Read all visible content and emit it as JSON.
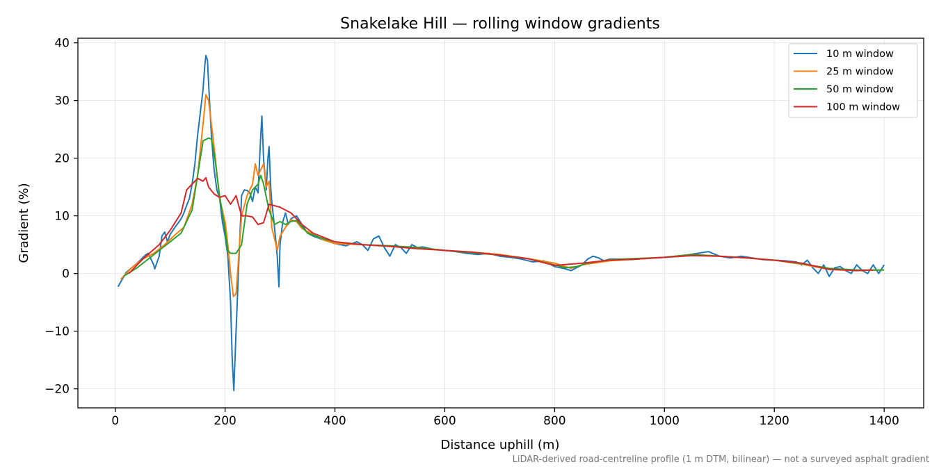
{
  "chart_data": {
    "type": "line",
    "title": "Snakelake Hill — rolling window gradients",
    "xlabel": "Distance uphill (m)",
    "ylabel": "Gradient (%)",
    "xlim": [
      -68,
      1472
    ],
    "ylim": [
      -23.3,
      40.8
    ],
    "xticks": [
      0,
      200,
      400,
      600,
      800,
      1000,
      1200,
      1400
    ],
    "xtick_labels": [
      "0",
      "200",
      "400",
      "600",
      "800",
      "1000",
      "1200",
      "1400"
    ],
    "yticks": [
      -20,
      -10,
      0,
      10,
      20,
      30,
      40
    ],
    "ytick_labels": [
      "−20",
      "−10",
      "0",
      "10",
      "20",
      "30",
      "40"
    ],
    "grid": true,
    "legend_position": "top-right",
    "footnote": "LiDAR-derived road-centreline profile (1 m DTM, bilinear) — not a surveyed asphalt gradient",
    "series": [
      {
        "name": "10 m window",
        "color": "#1f77b4",
        "x": [
          5,
          20,
          40,
          55,
          60,
          70,
          72,
          80,
          85,
          90,
          95,
          100,
          105,
          110,
          115,
          120,
          125,
          130,
          135,
          140,
          145,
          150,
          155,
          160,
          163,
          165,
          168,
          170,
          175,
          180,
          185,
          190,
          195,
          200,
          205,
          210,
          213,
          216,
          220,
          225,
          230,
          235,
          240,
          245,
          250,
          255,
          260,
          265,
          267,
          270,
          275,
          278,
          280,
          283,
          285,
          290,
          295,
          298,
          300,
          305,
          310,
          315,
          320,
          330,
          340,
          350,
          360,
          380,
          400,
          420,
          440,
          450,
          460,
          470,
          480,
          490,
          500,
          510,
          520,
          530,
          540,
          550,
          560,
          580,
          600,
          620,
          640,
          660,
          680,
          700,
          720,
          740,
          760,
          780,
          800,
          810,
          820,
          830,
          840,
          850,
          860,
          870,
          880,
          890,
          900,
          920,
          940,
          960,
          980,
          1000,
          1020,
          1040,
          1060,
          1080,
          1100,
          1120,
          1140,
          1160,
          1180,
          1200,
          1220,
          1240,
          1250,
          1260,
          1270,
          1280,
          1290,
          1300,
          1310,
          1320,
          1330,
          1340,
          1350,
          1360,
          1370,
          1380,
          1390,
          1400
        ],
        "y": [
          -2.3,
          0.2,
          1.8,
          3.2,
          3.5,
          1.5,
          0.8,
          3.0,
          6.5,
          7.2,
          5.5,
          6.8,
          7.5,
          8.2,
          8.8,
          9.5,
          10.5,
          11.8,
          13.0,
          15.5,
          19.0,
          24.0,
          28.0,
          32.0,
          36.0,
          37.8,
          37.0,
          33.0,
          24.0,
          18.0,
          14.5,
          13.0,
          9.0,
          6.5,
          3.0,
          -5.0,
          -15.0,
          -20.3,
          -10.0,
          2.0,
          13.5,
          14.5,
          14.4,
          14.0,
          12.5,
          15.0,
          14.0,
          24.0,
          27.3,
          20.0,
          14.5,
          20.0,
          22.0,
          15.0,
          12.5,
          8.0,
          3.0,
          -2.3,
          5.0,
          9.0,
          10.5,
          8.5,
          9.5,
          10.0,
          8.5,
          7.0,
          6.5,
          5.8,
          5.2,
          4.8,
          5.5,
          5.0,
          4.0,
          6.0,
          6.5,
          4.5,
          3.0,
          5.0,
          4.5,
          3.5,
          5.0,
          4.5,
          4.6,
          4.2,
          4.0,
          3.8,
          3.5,
          3.3,
          3.5,
          3.0,
          2.8,
          2.5,
          2.0,
          2.2,
          1.2,
          1.0,
          0.8,
          0.5,
          1.0,
          1.5,
          2.5,
          3.0,
          2.7,
          2.2,
          2.5,
          2.5,
          2.4,
          2.6,
          2.7,
          2.8,
          3.0,
          3.2,
          3.5,
          3.8,
          3.0,
          2.7,
          3.0,
          2.7,
          2.4,
          2.3,
          2.2,
          2.0,
          1.5,
          2.3,
          1.0,
          0.0,
          1.5,
          -0.5,
          1.0,
          1.2,
          0.5,
          0.0,
          1.5,
          0.5,
          0.0,
          1.5,
          0.0,
          1.5
        ]
      },
      {
        "name": "25 m window",
        "color": "#ff7f0e",
        "x": [
          10,
          30,
          50,
          70,
          90,
          110,
          125,
          140,
          150,
          160,
          165,
          170,
          180,
          190,
          200,
          205,
          210,
          215,
          220,
          230,
          240,
          250,
          255,
          260,
          265,
          270,
          275,
          280,
          285,
          290,
          295,
          300,
          310,
          320,
          330,
          340,
          360,
          380,
          400,
          450,
          500,
          530,
          550,
          600,
          650,
          700,
          750,
          800,
          830,
          850,
          900,
          950,
          1000,
          1050,
          1100,
          1150,
          1200,
          1250,
          1300,
          1350,
          1400
        ],
        "y": [
          -1.0,
          1.0,
          2.5,
          3.5,
          5.0,
          6.8,
          8.0,
          12.0,
          17.0,
          26.0,
          31.0,
          30.0,
          22.0,
          13.0,
          9.0,
          5.0,
          0.0,
          -4.0,
          -3.5,
          10.0,
          13.5,
          15.5,
          19.0,
          17.0,
          18.0,
          19.0,
          15.0,
          16.0,
          8.0,
          6.0,
          4.0,
          6.5,
          8.0,
          9.3,
          9.0,
          7.8,
          6.8,
          5.8,
          5.2,
          5.0,
          4.8,
          4.5,
          4.5,
          4.0,
          3.7,
          3.3,
          2.6,
          1.8,
          0.9,
          1.5,
          2.2,
          2.5,
          2.8,
          3.3,
          3.0,
          2.7,
          2.3,
          1.6,
          0.7,
          0.5,
          0.6
        ]
      },
      {
        "name": "50 m window",
        "color": "#2ca02c",
        "x": [
          15,
          40,
          60,
          80,
          100,
          120,
          140,
          150,
          160,
          170,
          175,
          180,
          190,
          200,
          205,
          210,
          220,
          230,
          240,
          250,
          260,
          265,
          270,
          280,
          290,
          300,
          310,
          320,
          330,
          350,
          380,
          400,
          450,
          500,
          550,
          600,
          650,
          700,
          750,
          800,
          820,
          840,
          860,
          900,
          950,
          1000,
          1050,
          1100,
          1150,
          1200,
          1250,
          1300,
          1350,
          1400
        ],
        "y": [
          -0.5,
          1.0,
          2.5,
          4.0,
          5.5,
          7.0,
          11.0,
          17.0,
          23.0,
          23.5,
          23.3,
          21.0,
          13.5,
          7.5,
          4.0,
          3.5,
          3.5,
          5.0,
          12.0,
          14.5,
          15.5,
          17.0,
          15.5,
          11.0,
          8.5,
          9.0,
          8.5,
          9.0,
          9.2,
          7.0,
          6.0,
          5.5,
          5.0,
          4.8,
          4.5,
          4.0,
          3.6,
          3.2,
          2.6,
          1.5,
          1.0,
          1.2,
          1.8,
          2.4,
          2.6,
          2.8,
          3.3,
          3.0,
          2.7,
          2.3,
          1.7,
          0.9,
          0.6,
          0.6
        ]
      },
      {
        "name": "100 m window",
        "color": "#d62728",
        "x": [
          25,
          50,
          80,
          100,
          120,
          130,
          140,
          150,
          160,
          165,
          170,
          180,
          190,
          200,
          210,
          220,
          230,
          240,
          250,
          260,
          270,
          280,
          300,
          320,
          340,
          360,
          400,
          450,
          500,
          550,
          600,
          650,
          700,
          750,
          800,
          850,
          900,
          950,
          1000,
          1050,
          1100,
          1150,
          1200,
          1250,
          1300,
          1350,
          1380
        ],
        "y": [
          0.0,
          2.5,
          5.0,
          7.5,
          10.5,
          14.5,
          15.5,
          16.5,
          16.0,
          16.6,
          15.0,
          13.8,
          13.2,
          13.5,
          12.0,
          13.5,
          10.0,
          10.0,
          9.8,
          8.5,
          8.8,
          12.0,
          11.5,
          10.5,
          8.5,
          7.0,
          5.5,
          5.0,
          4.7,
          4.3,
          4.0,
          3.7,
          3.2,
          2.6,
          1.4,
          1.8,
          2.3,
          2.5,
          2.8,
          3.1,
          3.0,
          2.7,
          2.3,
          1.8,
          0.7,
          0.5,
          0.6
        ]
      }
    ]
  }
}
